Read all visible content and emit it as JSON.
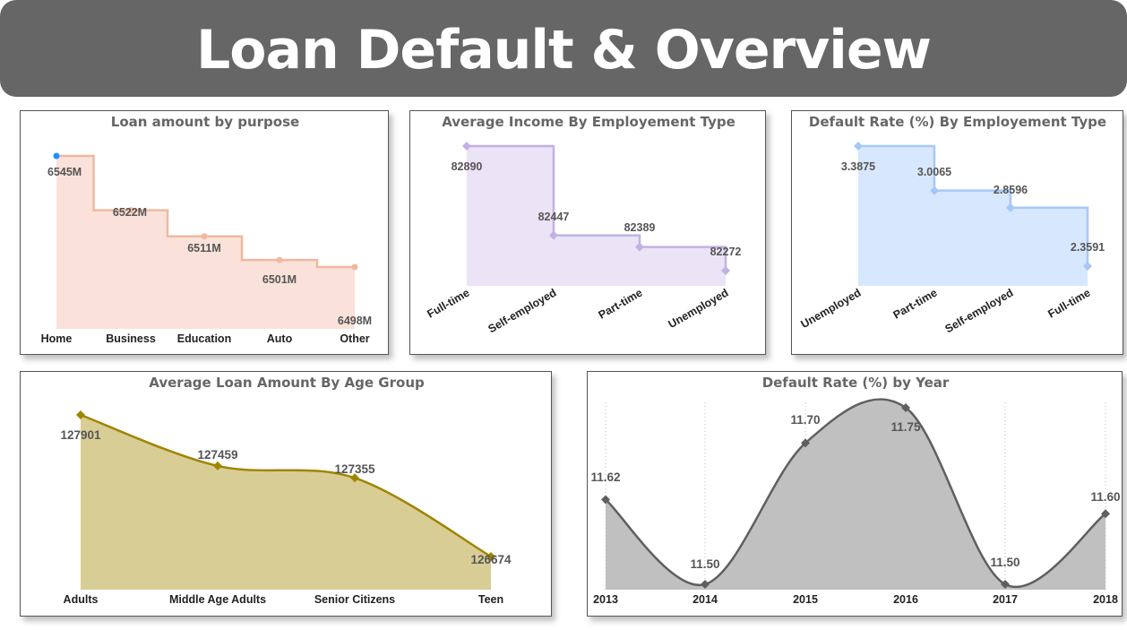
{
  "header": {
    "title": "Loan Default & Overview"
  },
  "colors": {
    "purpose": "#f0b89f",
    "purpose_fill": "#fae2da",
    "purpose_first_marker": "#1e90ff",
    "income": "#c2b1e4",
    "income_fill": "#ebe3f6",
    "default_emp": "#a6c8f7",
    "default_emp_fill": "#d7e7fd",
    "age": "#a08400",
    "age_fill": "#d9cd96",
    "year": "#5f5f5f",
    "year_fill": "#c0c0c0"
  },
  "chart_data": [
    {
      "id": "purpose",
      "type": "area",
      "shape": "step",
      "title": "Loan amount by purpose",
      "categories": [
        "Home",
        "Business",
        "Education",
        "Auto",
        "Other"
      ],
      "values": [
        6545,
        6522,
        6511,
        6501,
        6498
      ],
      "labels": [
        "6545M",
        "6522M",
        "6511M",
        "6501M",
        "6498M"
      ]
    },
    {
      "id": "income",
      "type": "area",
      "shape": "step",
      "title": "Average Income By Employement Type",
      "categories": [
        "Full-time",
        "Self-employed",
        "Part-time",
        "Unemployed"
      ],
      "values": [
        82890,
        82447,
        82389,
        82272
      ],
      "labels": [
        "82890",
        "82447",
        "82389",
        "82272"
      ]
    },
    {
      "id": "default_emp",
      "type": "area",
      "shape": "step",
      "title": "Default Rate (%) By Employement Type",
      "categories": [
        "Unemployed",
        "Part-time",
        "Self-employed",
        "Full-time"
      ],
      "values": [
        3.3875,
        3.0065,
        2.8596,
        2.3591
      ],
      "labels": [
        "3.3875",
        "3.0065",
        "2.8596",
        "2.3591"
      ]
    },
    {
      "id": "age",
      "type": "area",
      "shape": "smooth",
      "title": "Average Loan Amount By Age Group",
      "categories": [
        "Adults",
        "Middle Age Adults",
        "Senior Citizens",
        "Teen"
      ],
      "values": [
        127901,
        127459,
        127355,
        126674
      ],
      "labels": [
        "127901",
        "127459",
        "127355",
        "126674"
      ]
    },
    {
      "id": "year",
      "type": "area",
      "shape": "smooth",
      "title": "Default Rate (%) by Year",
      "categories": [
        "2013",
        "2014",
        "2015",
        "2016",
        "2017",
        "2018"
      ],
      "values": [
        11.62,
        11.5,
        11.7,
        11.75,
        11.5,
        11.6
      ],
      "labels": [
        "11.62",
        "11.50",
        "11.70",
        "11.75",
        "11.50",
        "11.60"
      ],
      "grid": "vertical dotted"
    }
  ]
}
